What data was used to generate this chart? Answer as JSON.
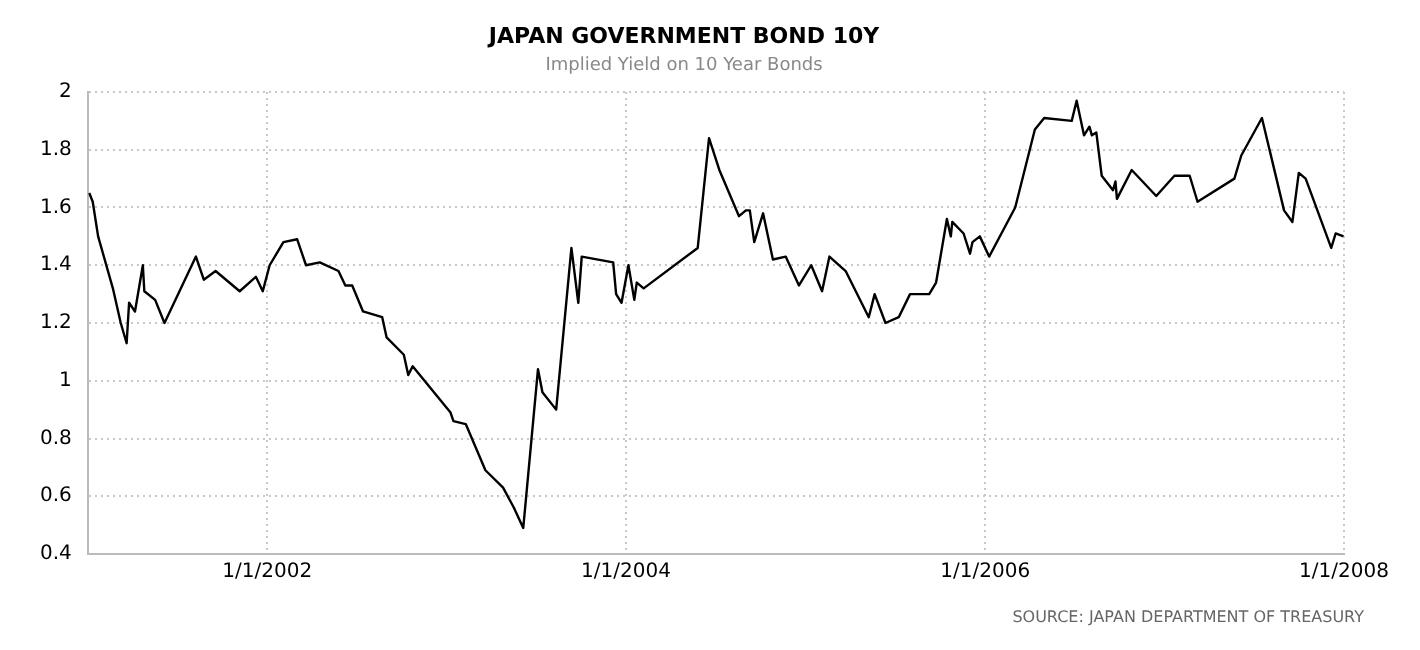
{
  "chart_data": {
    "type": "line",
    "title": "JAPAN GOVERNMENT BOND 10Y",
    "subtitle": "Implied Yield on 10 Year Bonds",
    "x": [
      "2001-01-04",
      "2001-01-11",
      "2001-01-22",
      "2001-02-21",
      "2001-03-09",
      "2001-03-21",
      "2001-03-26",
      "2001-04-07",
      "2001-04-23",
      "2001-04-26",
      "2001-05-18",
      "2001-06-06",
      "2001-08-09",
      "2001-08-25",
      "2001-09-18",
      "2001-11-06",
      "2001-12-09",
      "2001-12-23",
      "2002-01-06",
      "2002-02-03",
      "2002-03-03",
      "2002-03-21",
      "2002-04-18",
      "2002-05-26",
      "2002-06-09",
      "2002-06-23",
      "2002-07-15",
      "2002-08-23",
      "2002-09-01",
      "2002-10-06",
      "2002-10-15",
      "2002-10-24",
      "2003-01-09",
      "2003-01-15",
      "2003-02-09",
      "2003-03-21",
      "2003-04-26",
      "2003-05-18",
      "2003-06-06",
      "2003-07-06",
      "2003-07-15",
      "2003-08-12",
      "2003-09-12",
      "2003-09-26",
      "2003-10-03",
      "2003-12-06",
      "2003-12-12",
      "2003-12-23",
      "2004-01-06",
      "2004-01-18",
      "2004-01-23",
      "2004-02-06",
      "2004-05-26",
      "2004-06-18",
      "2004-07-09",
      "2004-08-18",
      "2004-09-01",
      "2004-09-09",
      "2004-09-18",
      "2004-10-06",
      "2004-10-26",
      "2004-11-21",
      "2004-12-18",
      "2005-01-12",
      "2005-02-03",
      "2005-02-18",
      "2005-03-23",
      "2005-05-09",
      "2005-05-21",
      "2005-06-12",
      "2005-07-09",
      "2005-08-01",
      "2005-09-09",
      "2005-09-23",
      "2005-10-15",
      "2005-10-23",
      "2005-10-26",
      "2005-11-18",
      "2005-12-01",
      "2005-12-06",
      "2005-12-21",
      "2006-01-09",
      "2006-03-03",
      "2006-04-12",
      "2006-05-01",
      "2006-06-26",
      "2006-07-06",
      "2006-07-21",
      "2006-08-01",
      "2006-08-06",
      "2006-08-15",
      "2006-08-26",
      "2006-09-18",
      "2006-09-23",
      "2006-09-26",
      "2006-10-26",
      "2006-12-15",
      "2007-01-21",
      "2007-02-21",
      "2007-03-09",
      "2007-05-23",
      "2007-06-06",
      "2007-07-18",
      "2007-09-01",
      "2007-09-18",
      "2007-10-01",
      "2007-10-15",
      "2007-12-06",
      "2007-12-15",
      "2007-12-31"
    ],
    "series": [
      {
        "color": "#000000",
        "values": [
          1.65,
          1.62,
          1.5,
          1.32,
          1.2,
          1.13,
          1.27,
          1.24,
          1.4,
          1.31,
          1.28,
          1.2,
          1.43,
          1.35,
          1.38,
          1.31,
          1.36,
          1.31,
          1.4,
          1.48,
          1.49,
          1.4,
          1.41,
          1.38,
          1.33,
          1.33,
          1.24,
          1.22,
          1.15,
          1.09,
          1.02,
          1.05,
          0.89,
          0.86,
          0.85,
          0.69,
          0.63,
          0.56,
          0.49,
          1.04,
          0.96,
          0.9,
          1.46,
          1.27,
          1.43,
          1.41,
          1.3,
          1.27,
          1.4,
          1.28,
          1.34,
          1.32,
          1.46,
          1.84,
          1.73,
          1.57,
          1.59,
          1.59,
          1.48,
          1.58,
          1.42,
          1.43,
          1.33,
          1.4,
          1.31,
          1.43,
          1.38,
          1.22,
          1.3,
          1.2,
          1.22,
          1.3,
          1.3,
          1.34,
          1.56,
          1.5,
          1.55,
          1.51,
          1.44,
          1.48,
          1.5,
          1.43,
          1.6,
          1.87,
          1.91,
          1.9,
          1.97,
          1.85,
          1.88,
          1.85,
          1.86,
          1.71,
          1.66,
          1.69,
          1.63,
          1.73,
          1.64,
          1.71,
          1.71,
          1.62,
          1.7,
          1.78,
          1.91,
          1.59,
          1.55,
          1.72,
          1.7,
          1.46,
          1.51,
          1.5
        ]
      }
    ],
    "xlim": [
      "2001-01-01",
      "2008-01-01"
    ],
    "xticks": [
      {
        "value": "2002-01-01",
        "label": "1/1/2002"
      },
      {
        "value": "2004-01-01",
        "label": "1/1/2004"
      },
      {
        "value": "2006-01-01",
        "label": "1/1/2006"
      },
      {
        "value": "2008-01-01",
        "label": "1/1/2008"
      }
    ],
    "ylim": [
      0.4,
      2
    ],
    "yticks": [
      0.4,
      0.6,
      0.8,
      1,
      1.2,
      1.4,
      1.6,
      1.8,
      2
    ],
    "grid": true,
    "legend": false,
    "marker": "none",
    "line_style": "solid",
    "annotations": [
      "SOURCE: JAPAN DEPARTMENT OF TREASURY"
    ]
  }
}
